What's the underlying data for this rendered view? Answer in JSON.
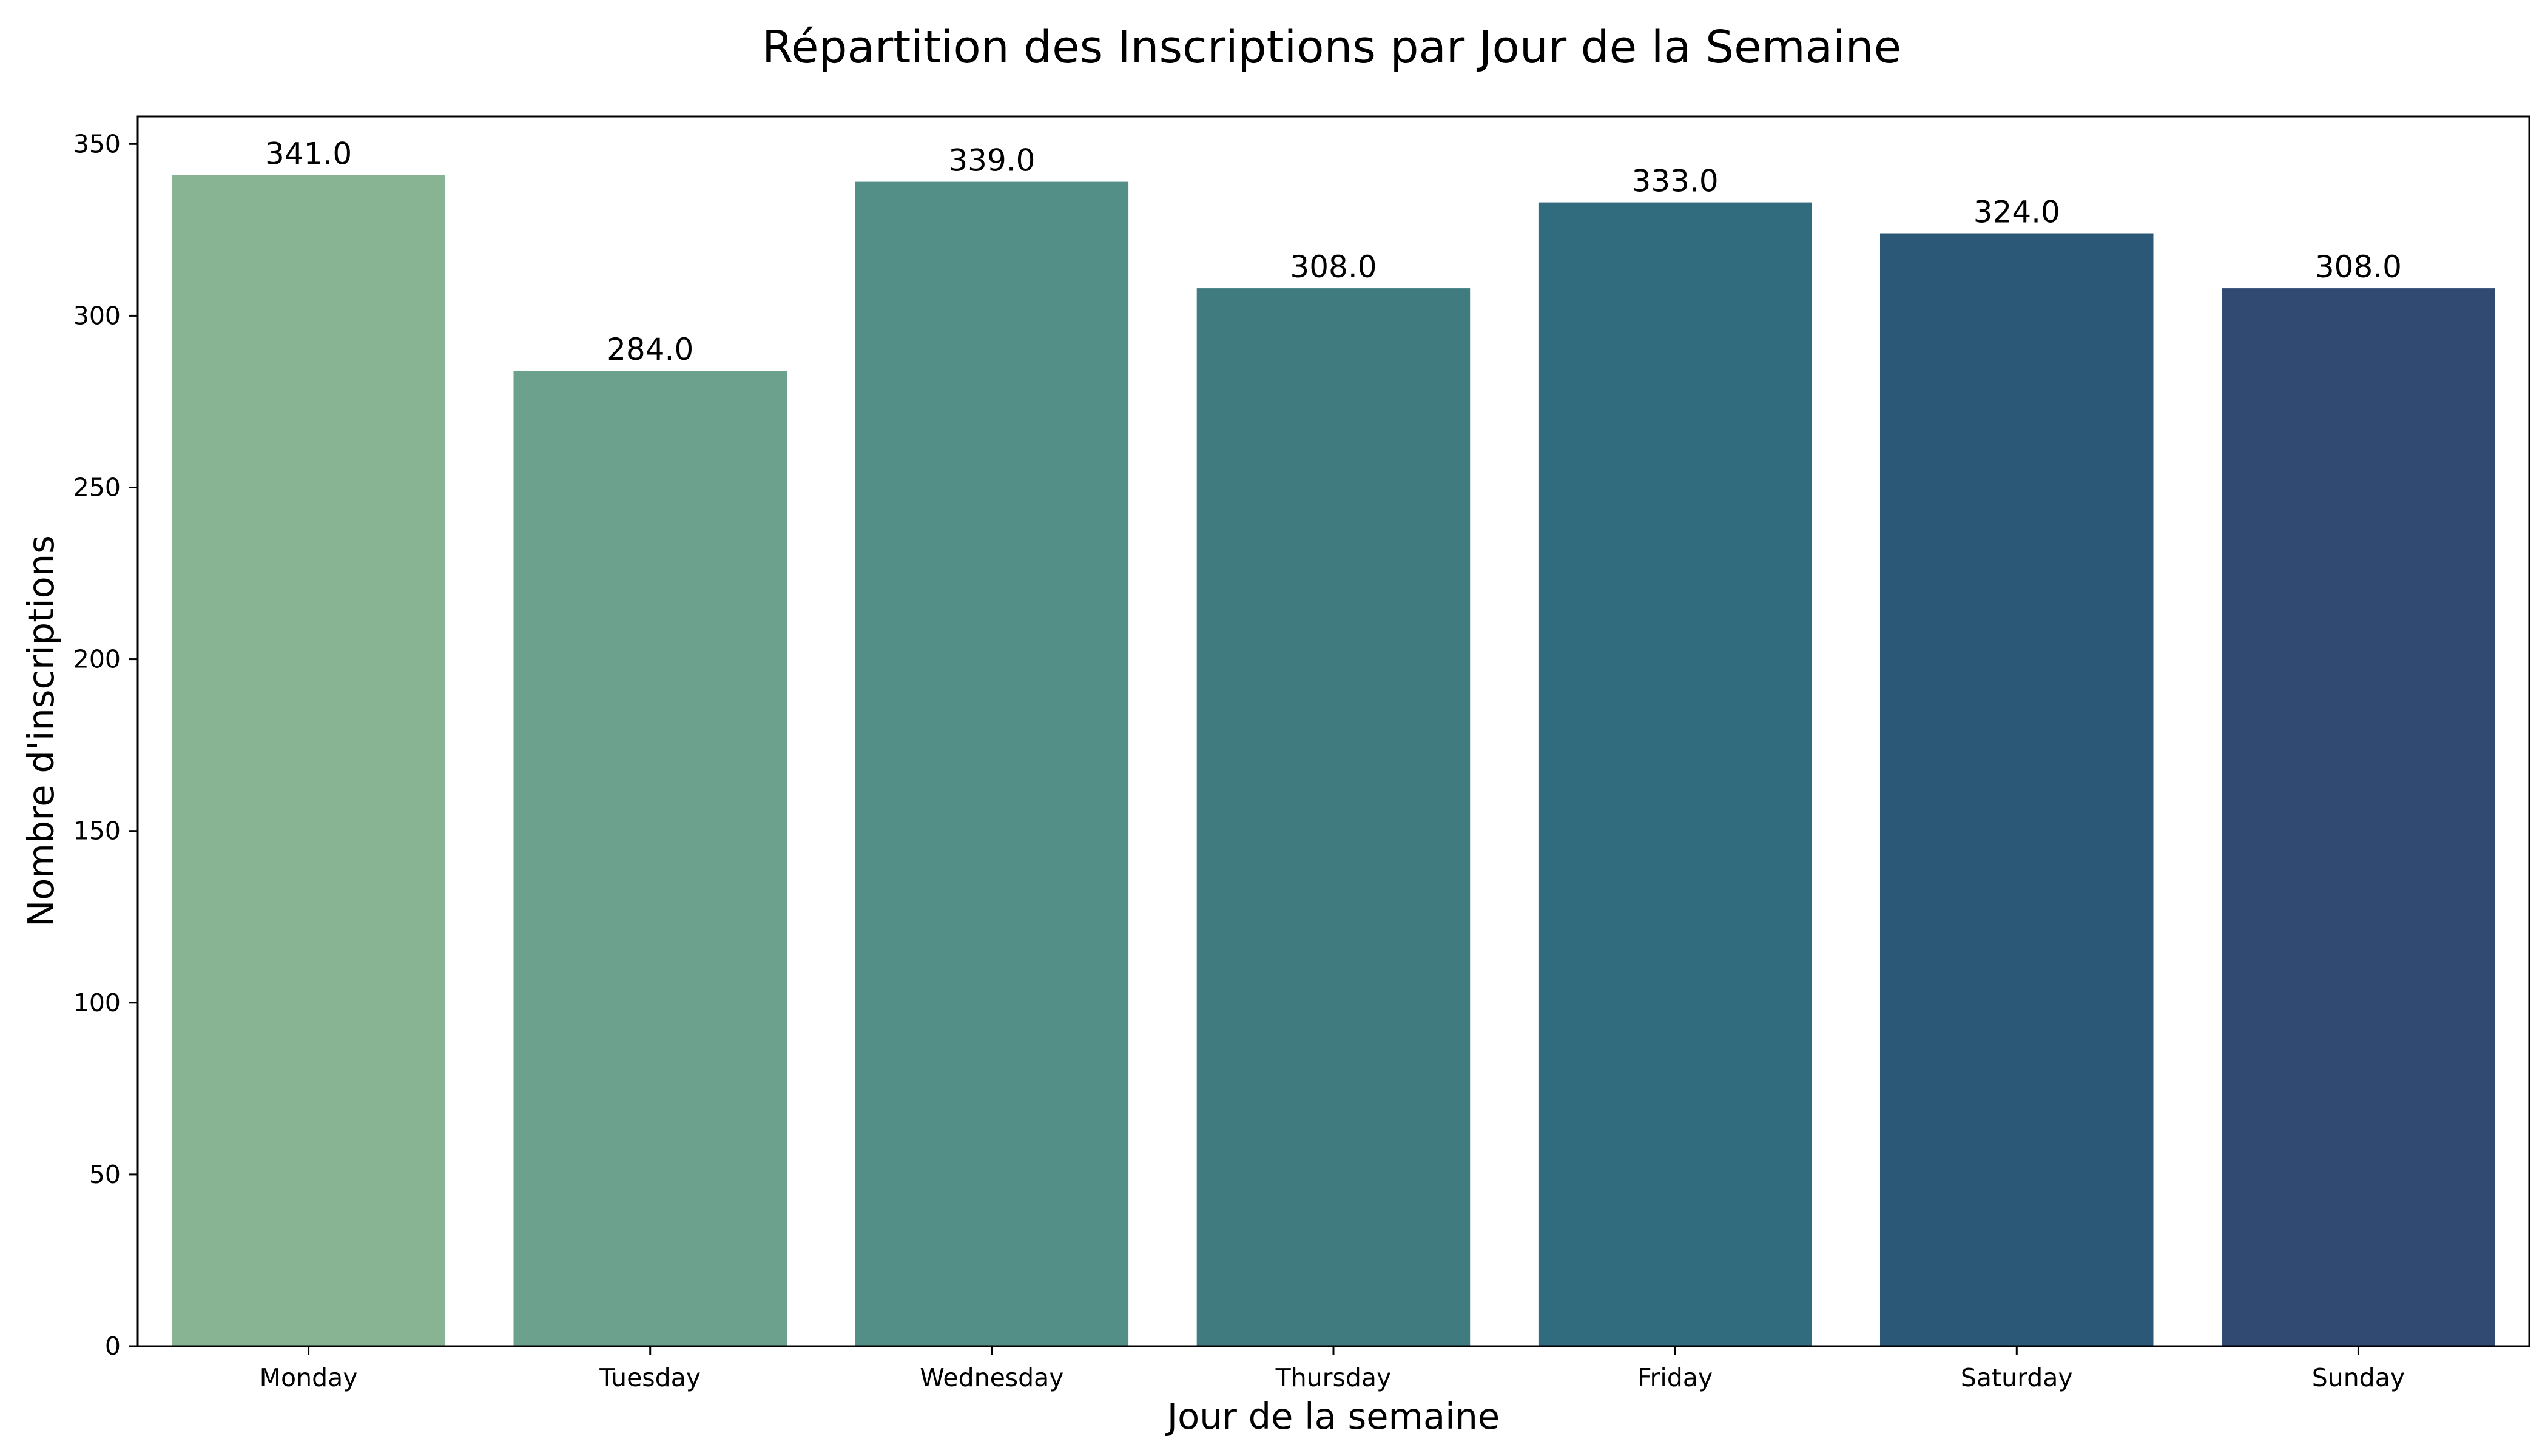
{
  "chart_data": {
    "type": "bar",
    "title": "Répartition des Inscriptions par Jour de la Semaine",
    "xlabel": "Jour de la semaine",
    "ylabel": "Nombre d'inscriptions",
    "categories": [
      "Monday",
      "Tuesday",
      "Wednesday",
      "Thursday",
      "Friday",
      "Saturday",
      "Sunday"
    ],
    "values": [
      341,
      284,
      339,
      308,
      333,
      324,
      308
    ],
    "value_labels": [
      "341.0",
      "284.0",
      "339.0",
      "308.0",
      "333.0",
      "324.0",
      "308.0"
    ],
    "colors": [
      "#89b493",
      "#6ba18d",
      "#538e87",
      "#407b80",
      "#316b7e",
      "#2b5876",
      "#314a72"
    ],
    "ylim": [
      0,
      358
    ],
    "yticks": [
      0,
      50,
      100,
      150,
      200,
      250,
      300,
      350
    ],
    "grid": false,
    "legend": "none"
  }
}
